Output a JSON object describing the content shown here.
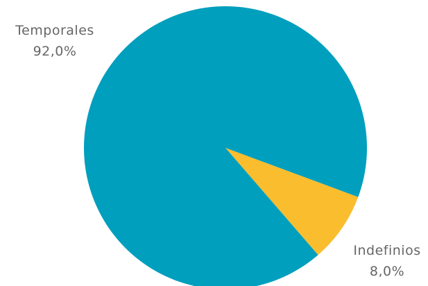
{
  "chart_data": {
    "type": "pie",
    "title": "",
    "slices": [
      {
        "label": "Temporales",
        "value": 92.0,
        "percent_label": "92,0%",
        "color": "#009FBD"
      },
      {
        "label": "Indefinios",
        "value": 8.0,
        "percent_label": "8,0%",
        "color": "#FABD2E"
      }
    ],
    "legend": "none"
  }
}
